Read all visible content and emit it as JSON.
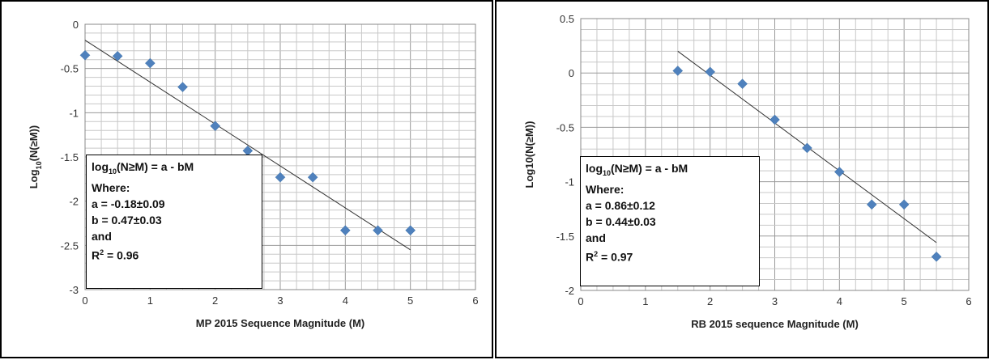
{
  "chart_data": [
    {
      "type": "scatter",
      "title": "",
      "xlabel": "MP 2015 Sequence Magnitude (M)",
      "ylabel": "Log10(N(≥M))",
      "ylabel_parts": {
        "main": "Log",
        "sub": "10",
        "rest": "(N(≥M))"
      },
      "xlim": [
        0,
        6
      ],
      "ylim": [
        -3,
        0
      ],
      "xticks": [
        "0",
        "1",
        "2",
        "3",
        "4",
        "5",
        "6"
      ],
      "yticks": [
        "0",
        "-0.5",
        "-1",
        "-1.5",
        "-2",
        "-2.5",
        "-3"
      ],
      "grid": true,
      "series": [
        {
          "x": [
            0,
            0.5,
            1,
            1.5,
            2,
            2.5,
            3,
            3.5,
            4,
            4.5,
            5
          ],
          "y": [
            -0.35,
            -0.36,
            -0.44,
            -0.71,
            -1.15,
            -1.43,
            -1.73,
            -1.73,
            -2.33,
            -2.33,
            -2.33
          ],
          "color": "#4F81BD"
        }
      ],
      "fit_line": {
        "x": [
          0,
          5
        ],
        "y": [
          -0.18,
          -2.55
        ]
      },
      "annotation": {
        "line1_pre": "log",
        "line1_sub": "10",
        "line1_post": "(N≥M) = a - bM",
        "line2": "Where:",
        "line3": "a = -0.18±0.09",
        "line4": "b = 0.47±0.03",
        "line5": "and",
        "line6_pre": "R",
        "line6_sup": "2",
        "line6_post": " = 0.96"
      }
    },
    {
      "type": "scatter",
      "title": "",
      "xlabel": "RB 2015 sequence Magnitude (M)",
      "ylabel": "Log10(N(≥M))",
      "xlim": [
        0,
        6
      ],
      "ylim": [
        -2,
        0.5
      ],
      "xticks": [
        "0",
        "1",
        "2",
        "3",
        "4",
        "5",
        "6"
      ],
      "yticks": [
        "0.5",
        "0",
        "-0.5",
        "-1",
        "-1.5",
        "-2"
      ],
      "grid": true,
      "series": [
        {
          "x": [
            1.5,
            2,
            2.5,
            3,
            3.5,
            4,
            4.5,
            5,
            5.5
          ],
          "y": [
            0.02,
            0.01,
            -0.1,
            -0.43,
            -0.69,
            -0.91,
            -1.21,
            -1.21,
            -1.69
          ],
          "color": "#4F81BD"
        }
      ],
      "fit_line": {
        "x": [
          1.5,
          5.5
        ],
        "y": [
          0.2,
          -1.56
        ]
      },
      "annotation": {
        "line1_pre": "log",
        "line1_sub": "10",
        "line1_post": "(N≥M) = a - bM",
        "line2": "Where:",
        "line3": "a = 0.86±0.12",
        "line4": "b = 0.44±0.03",
        "line5": "and",
        "line6_pre": "R",
        "line6_sup": "2",
        "line6_post": " = 0.97"
      }
    }
  ]
}
